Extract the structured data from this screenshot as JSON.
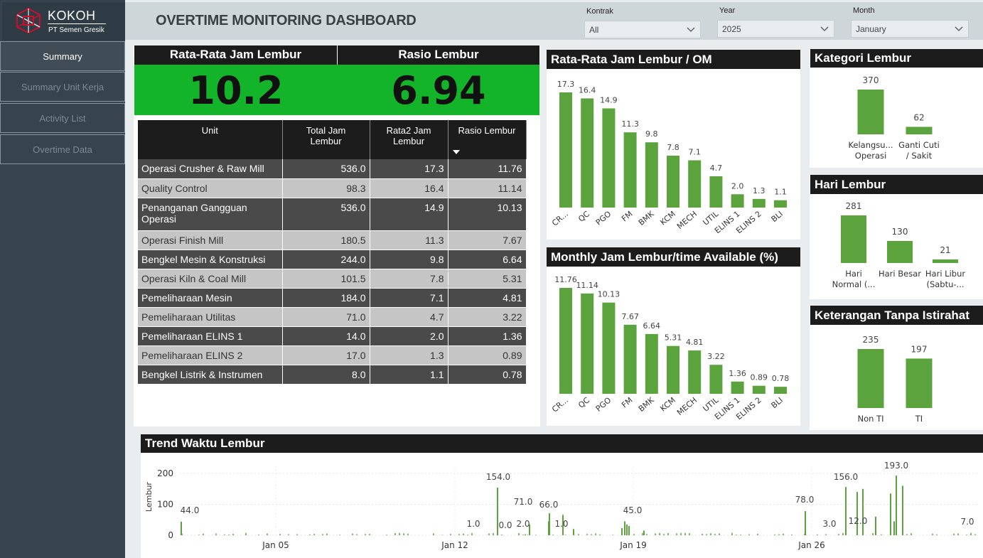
{
  "brand": {
    "name": "KOKOH",
    "subtitle": "PT Semen Gresik"
  },
  "nav": [
    {
      "label": "Summary",
      "active": true
    },
    {
      "label": "Summary Unit Kerja",
      "active": false
    },
    {
      "label": "Activity List",
      "active": false
    },
    {
      "label": "Overtime Data",
      "active": false
    }
  ],
  "header": {
    "title": "OVERTIME MONITORING DASHBOARD"
  },
  "filters": {
    "kontrak": {
      "label": "Kontrak",
      "value": "All"
    },
    "year": {
      "label": "Year",
      "value": "2025"
    },
    "month": {
      "label": "Month",
      "value": "January"
    }
  },
  "kpi": {
    "avg_label": "Rata-Rata Jam Lembur",
    "avg_value": "10.2",
    "ratio_label": "Rasio Lembur",
    "ratio_value": "6.94"
  },
  "table": {
    "headers": [
      "Unit",
      "Total Jam Lembur",
      "Rata2 Jam Lembur",
      "Rasio Lembur"
    ],
    "rows": [
      [
        "Operasi Crusher & Raw Mill",
        "536.0",
        "17.3",
        "11.76"
      ],
      [
        "Quality Control",
        "98.3",
        "16.4",
        "11.14"
      ],
      [
        "Penanganan Gangguan Operasi",
        "536.0",
        "14.9",
        "10.13"
      ],
      [
        "Operasi Finish Mill",
        "180.5",
        "11.3",
        "7.67"
      ],
      [
        "Bengkel Mesin & Konstruksi",
        "244.0",
        "9.8",
        "6.64"
      ],
      [
        "Operasi Kiln & Coal Mill",
        "101.5",
        "7.8",
        "5.31"
      ],
      [
        "Pemeliharaan Mesin",
        "184.0",
        "7.1",
        "4.81"
      ],
      [
        "Pemeliharaan Utilitas",
        "71.0",
        "4.7",
        "3.22"
      ],
      [
        "Pemeliharaan ELINS 1",
        "14.0",
        "2.0",
        "1.36"
      ],
      [
        "Pemeliharaan ELINS 2",
        "17.0",
        "1.3",
        "0.89"
      ],
      [
        "Bengkel Listrik & Instrumen",
        "8.0",
        "1.1",
        "0.78"
      ]
    ]
  },
  "colors": {
    "bar": "#5ba33c",
    "green_kpi": "#14b42a",
    "sidebar": "#37444d"
  },
  "chart_data": [
    {
      "id": "avg-om",
      "type": "bar",
      "title": "Rata-Rata Jam Lembur / OM",
      "categories": [
        "CR...",
        "QC",
        "PGO",
        "FM",
        "BMK",
        "KCM",
        "MECH",
        "UTIL",
        "ELINS 1",
        "ELINS 2",
        "BLI"
      ],
      "values": [
        17.3,
        16.4,
        14.9,
        11.3,
        9.8,
        7.8,
        7.1,
        4.7,
        2.0,
        1.3,
        1.1
      ],
      "labels": [
        "17.3",
        "16.4",
        "14.9",
        "11.3",
        "9.8",
        "7.8",
        "7.1",
        "4.7",
        "2.0",
        "1.3",
        "1.1"
      ]
    },
    {
      "id": "monthly-ratio",
      "type": "bar",
      "title": "Monthly Jam Lembur/time Available (%)",
      "categories": [
        "CR...",
        "QC",
        "PGO",
        "FM",
        "BMK",
        "KCM",
        "MECH",
        "UTIL",
        "ELINS 1",
        "ELINS 2",
        "BLI"
      ],
      "values": [
        11.76,
        11.14,
        10.13,
        7.67,
        6.64,
        5.31,
        4.81,
        3.22,
        1.36,
        0.89,
        0.78
      ],
      "labels": [
        "11.76",
        "11.14",
        "10.13",
        "7.67",
        "6.64",
        "5.31",
        "4.81",
        "3.22",
        "1.36",
        "0.89",
        "0.78"
      ]
    },
    {
      "id": "kategori",
      "type": "bar",
      "title": "Kategori Lembur",
      "categories": [
        "Kelangsu... Operasi",
        "Ganti Cuti / Sakit"
      ],
      "values": [
        370,
        62
      ]
    },
    {
      "id": "hari",
      "type": "bar",
      "title": "Hari Lembur",
      "categories": [
        "Hari Normal (...",
        "Hari Besar",
        "Hari Libur (Sabtu-..."
      ],
      "values": [
        281,
        130,
        21
      ]
    },
    {
      "id": "keterangan",
      "type": "bar",
      "title": "Keterangan Tanpa Istirahat",
      "categories": [
        "Non TI",
        "TI"
      ],
      "values": [
        235,
        197
      ]
    },
    {
      "id": "trend",
      "type": "bar",
      "title": "Trend Waktu Lembur",
      "ylabel": "Lembur",
      "yticks": [
        0,
        100,
        200
      ],
      "ylim": [
        0,
        200
      ],
      "xticks": [
        "Jan 05",
        "Jan 12",
        "Jan 19",
        "Jan 26"
      ],
      "annotations": [
        "44.0",
        "1.0",
        "154.0",
        "0.0",
        "71.0",
        "2.0",
        "66.0",
        "1.0",
        "45.0",
        "78.0",
        "3.0",
        "156.0",
        "12.0",
        "193.0",
        "7.0"
      ]
    }
  ]
}
